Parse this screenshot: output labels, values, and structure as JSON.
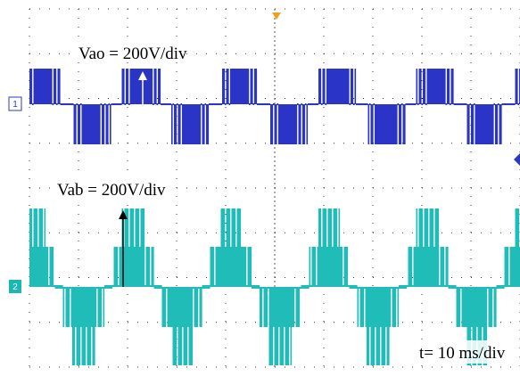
{
  "traces": [
    {
      "label": "Vao = 200V/div",
      "channel": "1"
    },
    {
      "label": "Vab = 200V/div",
      "channel": "2"
    }
  ],
  "timebase": "t= 10 ms/div"
}
